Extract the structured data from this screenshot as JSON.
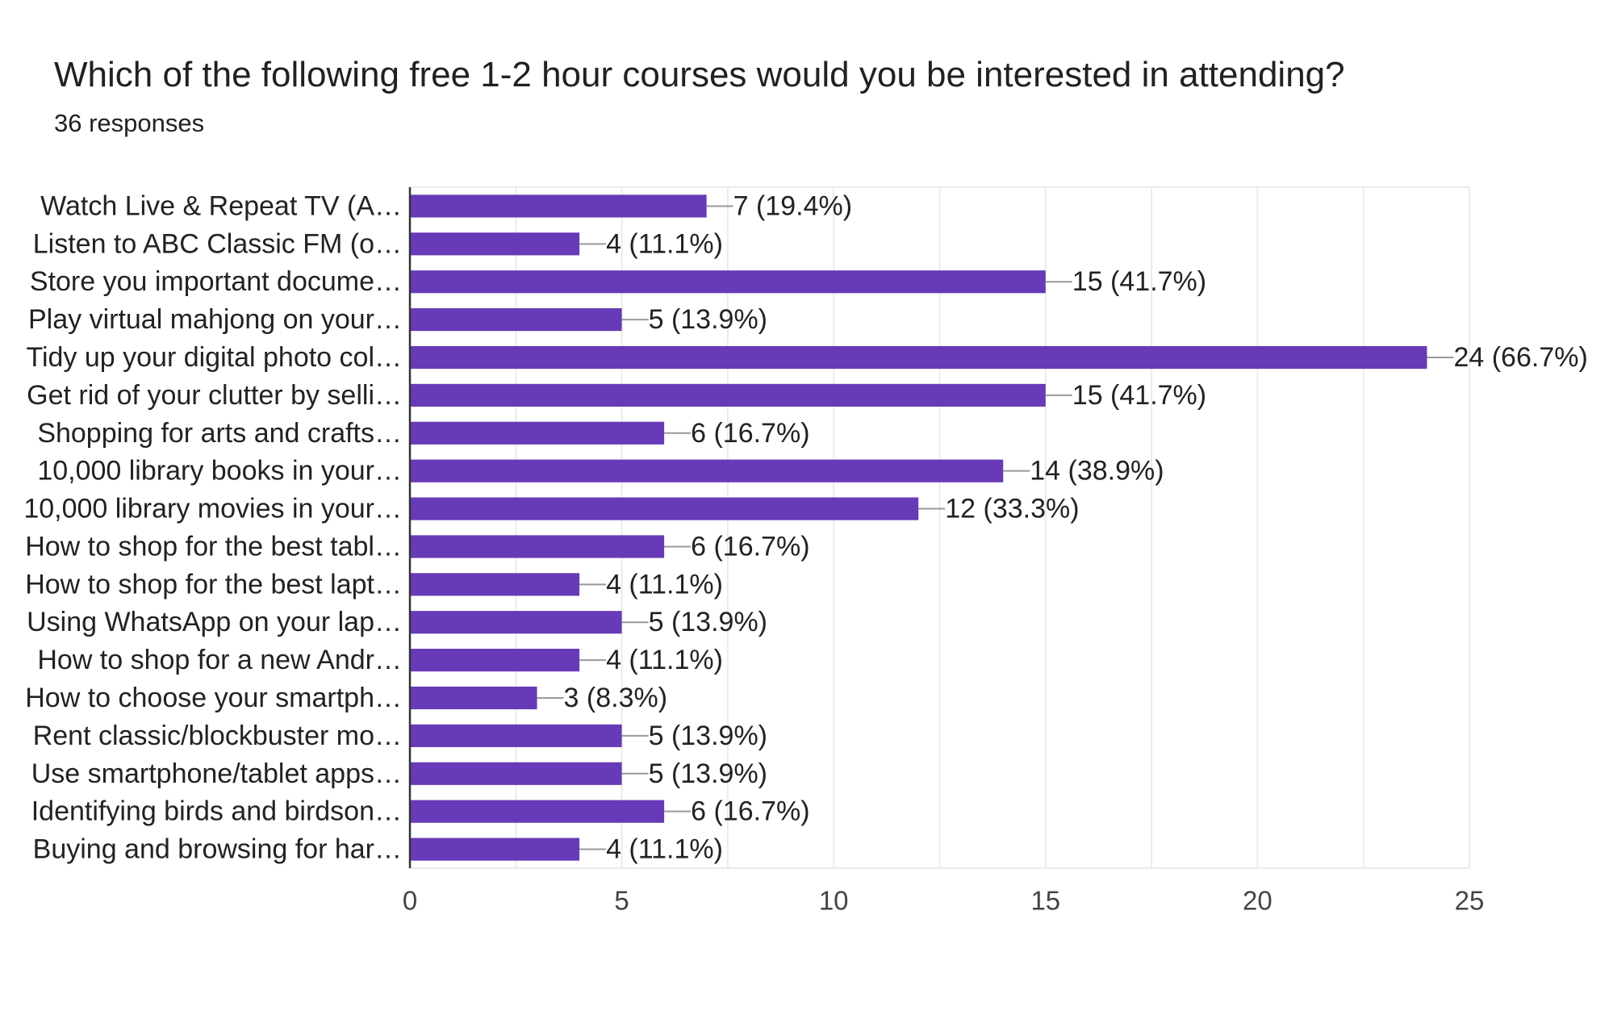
{
  "header": {
    "title": "Which of the following free 1-2 hour courses would you be interested in attending?",
    "subtitle": "36 responses"
  },
  "colors": {
    "bar": "#673ab7",
    "grid": "#ebebeb",
    "axis": "#333333",
    "leader": "#999999"
  },
  "chart_data": {
    "type": "bar",
    "orientation": "horizontal",
    "title": "Which of the following free 1-2 hour courses would you be interested in attending?",
    "subtitle": "36 responses",
    "categories": [
      "Watch Live & Repeat TV (A…",
      "Listen to ABC Classic FM (o…",
      "Store you important docume…",
      "Play virtual mahjong on your…",
      "Tidy up your digital photo col…",
      "Get rid of your clutter by selli…",
      "Shopping for arts and crafts…",
      "10,000 library books in your…",
      "10,000 library movies in your…",
      "How to shop for the best tabl…",
      "How to shop for the best lapt…",
      "Using WhatsApp on your lap…",
      "How to shop for a new Andr…",
      "How to choose your smartph…",
      "Rent classic/blockbuster mo…",
      "Use smartphone/tablet apps…",
      "Identifying birds and birdson…",
      "Buying and browsing for har…"
    ],
    "values": [
      7,
      4,
      15,
      5,
      24,
      15,
      6,
      14,
      12,
      6,
      4,
      5,
      4,
      3,
      5,
      5,
      6,
      4
    ],
    "data_labels": [
      "7 (19.4%)",
      "4 (11.1%)",
      "15 (41.7%)",
      "5 (13.9%)",
      "24 (66.7%)",
      "15 (41.7%)",
      "6 (16.7%)",
      "14 (38.9%)",
      "12 (33.3%)",
      "6 (16.7%)",
      "4 (11.1%)",
      "5 (13.9%)",
      "4 (11.1%)",
      "3 (8.3%)",
      "5 (13.9%)",
      "5 (13.9%)",
      "6 (16.7%)",
      "4 (11.1%)"
    ],
    "xlim": [
      0,
      25
    ],
    "xticks": [
      0,
      5,
      10,
      15,
      20,
      25
    ],
    "xtick_labels": [
      "0",
      "5",
      "10",
      "15",
      "20",
      "25"
    ],
    "grid": true
  }
}
